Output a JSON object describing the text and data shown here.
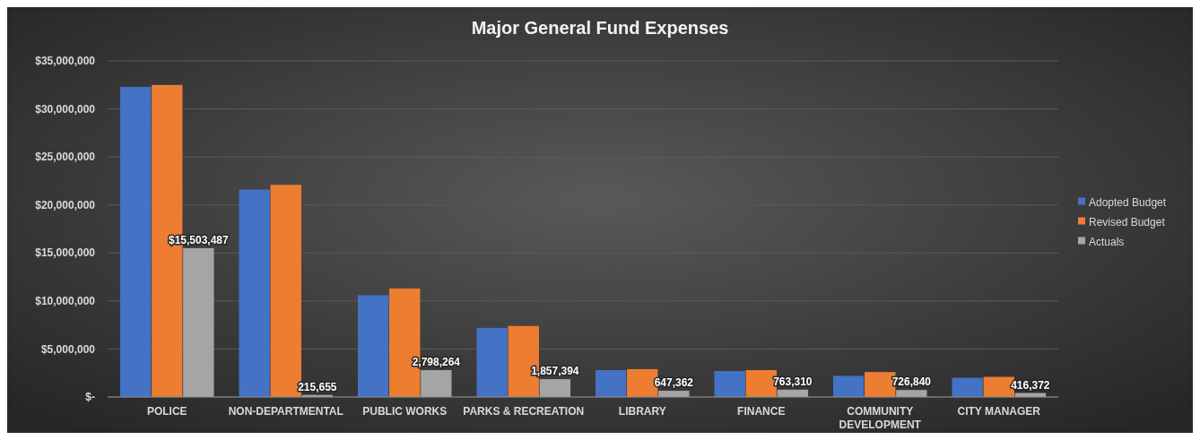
{
  "chart_data": {
    "type": "bar",
    "title": "Major General Fund Expenses",
    "categories": [
      "POLICE",
      "NON-DEPARTMENTAL",
      "PUBLIC WORKS",
      "PARKS & RECREATION",
      "LIBRARY",
      "FINANCE",
      "COMMUNITY DEVELOPMENT",
      "CITY MANAGER"
    ],
    "series": [
      {
        "name": "Adopted Budget",
        "color": "#4472c4",
        "values": [
          32300000,
          21600000,
          10600000,
          7200000,
          2800000,
          2700000,
          2200000,
          2000000
        ]
      },
      {
        "name": "Revised Budget",
        "color": "#ed7d31",
        "values": [
          32500000,
          22100000,
          11300000,
          7400000,
          2900000,
          2800000,
          2600000,
          2100000
        ]
      },
      {
        "name": "Actuals",
        "color": "#a5a5a5",
        "values": [
          15503487,
          215655,
          2798264,
          1857394,
          647362,
          763310,
          726840,
          416372
        ],
        "value_labels": [
          "$15,503,487",
          "215,655",
          "2,798,264",
          "1,857,394",
          "647,362",
          "763,310",
          "726,840",
          "416,372"
        ]
      }
    ],
    "ylim": [
      0,
      35000000
    ],
    "yticks": [
      {
        "value": 0,
        "label": "$-"
      },
      {
        "value": 5000000,
        "label": "$5,000,000"
      },
      {
        "value": 10000000,
        "label": "$10,000,000"
      },
      {
        "value": 15000000,
        "label": "$15,000,000"
      },
      {
        "value": 20000000,
        "label": "$20,000,000"
      },
      {
        "value": 25000000,
        "label": "$25,000,000"
      },
      {
        "value": 30000000,
        "label": "$30,000,000"
      },
      {
        "value": 35000000,
        "label": "$35,000,000"
      }
    ],
    "grid": "y",
    "legend": "right"
  }
}
